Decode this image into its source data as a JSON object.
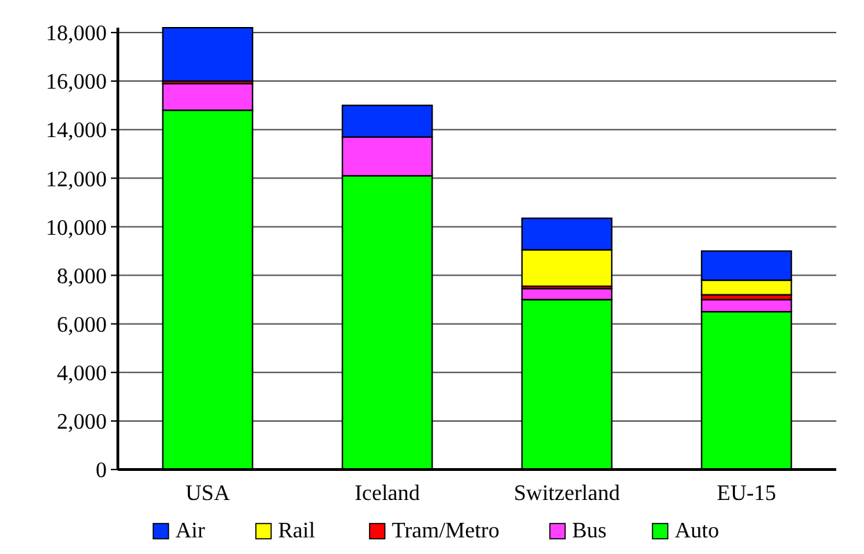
{
  "chart_data": {
    "type": "bar",
    "stacked": true,
    "categories": [
      "USA",
      "Iceland",
      "Switzerland",
      "EU-15"
    ],
    "series": [
      {
        "name": "Auto",
        "color": "#00ff00",
        "values": [
          14800,
          12100,
          7000,
          6500
        ]
      },
      {
        "name": "Bus",
        "color": "#ff40ff",
        "values": [
          1100,
          1600,
          450,
          500
        ]
      },
      {
        "name": "Tram/Metro",
        "color": "#ff0000",
        "values": [
          100,
          0,
          100,
          200
        ]
      },
      {
        "name": "Rail",
        "color": "#ffff00",
        "values": [
          0,
          0,
          1500,
          600
        ]
      },
      {
        "name": "Air",
        "color": "#0033ff",
        "values": [
          2200,
          1300,
          1300,
          1200
        ]
      }
    ],
    "ylim": [
      0,
      18200
    ],
    "yticks": [
      {
        "value": 0,
        "label": "0"
      },
      {
        "value": 2000,
        "label": "2,000"
      },
      {
        "value": 4000,
        "label": "4,000"
      },
      {
        "value": 6000,
        "label": "6,000"
      },
      {
        "value": 8000,
        "label": "8,000"
      },
      {
        "value": 10000,
        "label": "10,000"
      },
      {
        "value": 12000,
        "label": "12,000"
      },
      {
        "value": 14000,
        "label": "14,000"
      },
      {
        "value": 16000,
        "label": "16,000"
      },
      {
        "value": 18000,
        "label": "18,000"
      }
    ],
    "grid": "y",
    "legend": "bottom"
  }
}
